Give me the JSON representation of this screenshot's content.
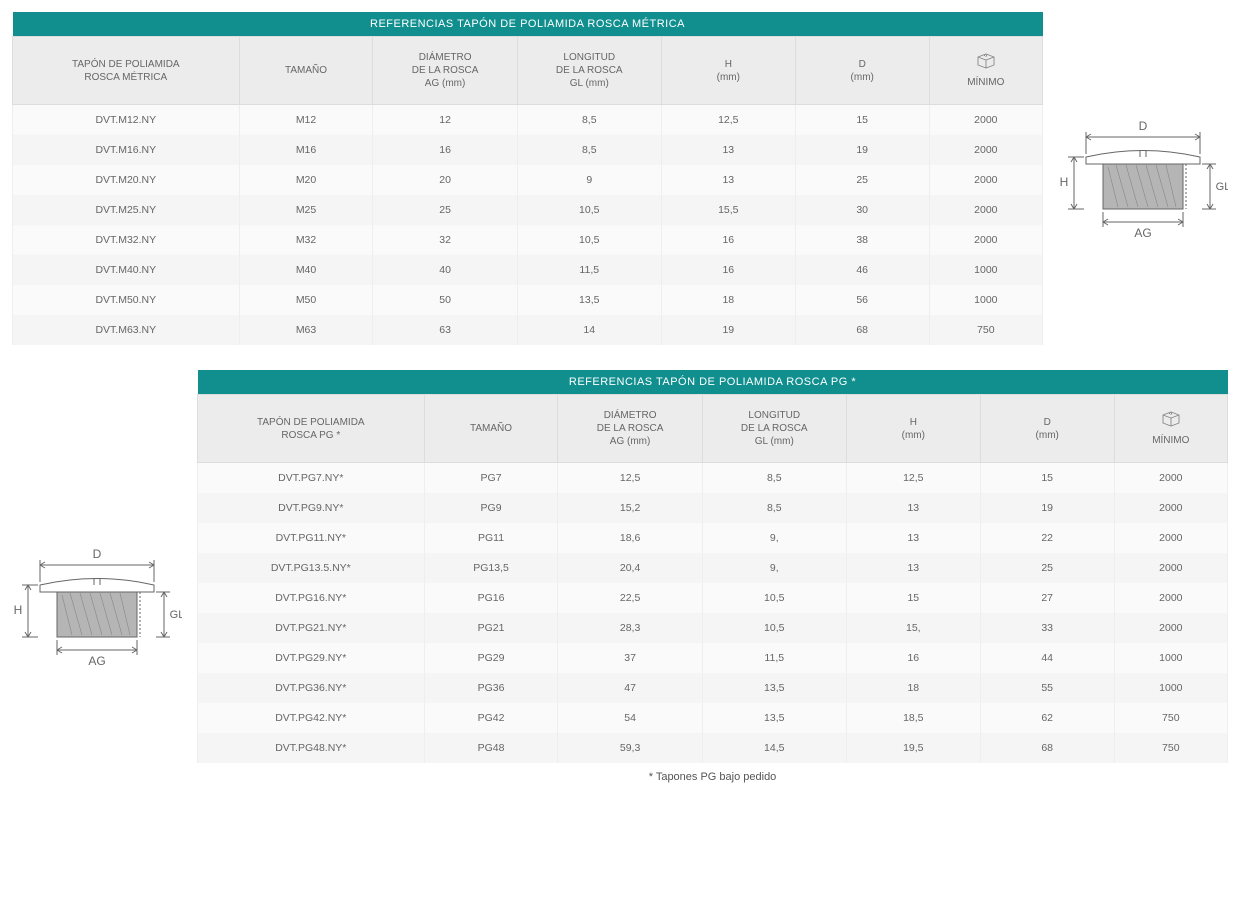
{
  "colors": {
    "header_bg": "#118f8f",
    "header_text": "#ffffff",
    "subheader_bg": "#ececec",
    "row_alt_a": "#fafafa",
    "row_alt_b": "#f5f5f5",
    "border": "#dddddd",
    "text": "#555555",
    "diagram_stroke": "#666666",
    "diagram_fill": "#b5b5b5"
  },
  "table1": {
    "title": "REFERENCIAS TAPÓN DE POLIAMIDA ROSCA MÉTRICA",
    "columns": [
      "TAPÓN DE POLIAMIDA\nROSCA MÉTRICA",
      "TAMAÑO",
      "DIÁMETRO\nDE LA ROSCA\nAG (mm)",
      "LONGITUD\nDE LA ROSCA\nGL (mm)",
      "H\n(mm)",
      "D\n(mm)",
      "MÍNIMO"
    ],
    "col_widths": [
      "22%",
      "13%",
      "14%",
      "14%",
      "13%",
      "13%",
      "11%"
    ],
    "rows": [
      [
        "DVT.M12.NY",
        "M12",
        "12",
        "8,5",
        "12,5",
        "15",
        "2000"
      ],
      [
        "DVT.M16.NY",
        "M16",
        "16",
        "8,5",
        "13",
        "19",
        "2000"
      ],
      [
        "DVT.M20.NY",
        "M20",
        "20",
        "9",
        "13",
        "25",
        "2000"
      ],
      [
        "DVT.M25.NY",
        "M25",
        "25",
        "10,5",
        "15,5",
        "30",
        "2000"
      ],
      [
        "DVT.M32.NY",
        "M32",
        "32",
        "10,5",
        "16",
        "38",
        "2000"
      ],
      [
        "DVT.M40.NY",
        "M40",
        "40",
        "11,5",
        "16",
        "46",
        "1000"
      ],
      [
        "DVT.M50.NY",
        "M50",
        "50",
        "13,5",
        "18",
        "56",
        "1000"
      ],
      [
        "DVT.M63.NY",
        "M63",
        "63",
        "14",
        "19",
        "68",
        "750"
      ]
    ]
  },
  "table2": {
    "title": "REFERENCIAS TAPÓN DE POLIAMIDA ROSCA PG *",
    "columns": [
      "TAPÓN DE POLIAMIDA\nROSCA PG *",
      "TAMAÑO",
      "DIÁMETRO\nDE LA ROSCA\nAG (mm)",
      "LONGITUD\nDE LA ROSCA\nGL (mm)",
      "H\n(mm)",
      "D\n(mm)",
      "MÍNIMO"
    ],
    "col_widths": [
      "22%",
      "13%",
      "14%",
      "14%",
      "13%",
      "13%",
      "11%"
    ],
    "rows": [
      [
        "DVT.PG7.NY*",
        "PG7",
        "12,5",
        "8,5",
        "12,5",
        "15",
        "2000"
      ],
      [
        "DVT.PG9.NY*",
        "PG9",
        "15,2",
        "8,5",
        "13",
        "19",
        "2000"
      ],
      [
        "DVT.PG11.NY*",
        "PG11",
        "18,6",
        "9,",
        "13",
        "22",
        "2000"
      ],
      [
        "DVT.PG13.5.NY*",
        "PG13,5",
        "20,4",
        "9,",
        "13",
        "25",
        "2000"
      ],
      [
        "DVT.PG16.NY*",
        "PG16",
        "22,5",
        "10,5",
        "15",
        "27",
        "2000"
      ],
      [
        "DVT.PG21.NY*",
        "PG21",
        "28,3",
        "10,5",
        "15,",
        "33",
        "2000"
      ],
      [
        "DVT.PG29.NY*",
        "PG29",
        "37",
        "11,5",
        "16",
        "44",
        "1000"
      ],
      [
        "DVT.PG36.NY*",
        "PG36",
        "47",
        "13,5",
        "18",
        "55",
        "1000"
      ],
      [
        "DVT.PG42.NY*",
        "PG42",
        "54",
        "13,5",
        "18,5",
        "62",
        "750"
      ],
      [
        "DVT.PG48.NY*",
        "PG48",
        "59,3",
        "14,5",
        "19,5",
        "68",
        "750"
      ]
    ]
  },
  "diagram": {
    "D": "D",
    "H": "H",
    "GL": "GL",
    "AG": "AG"
  },
  "footnote": "* Tapones PG bajo pedido"
}
